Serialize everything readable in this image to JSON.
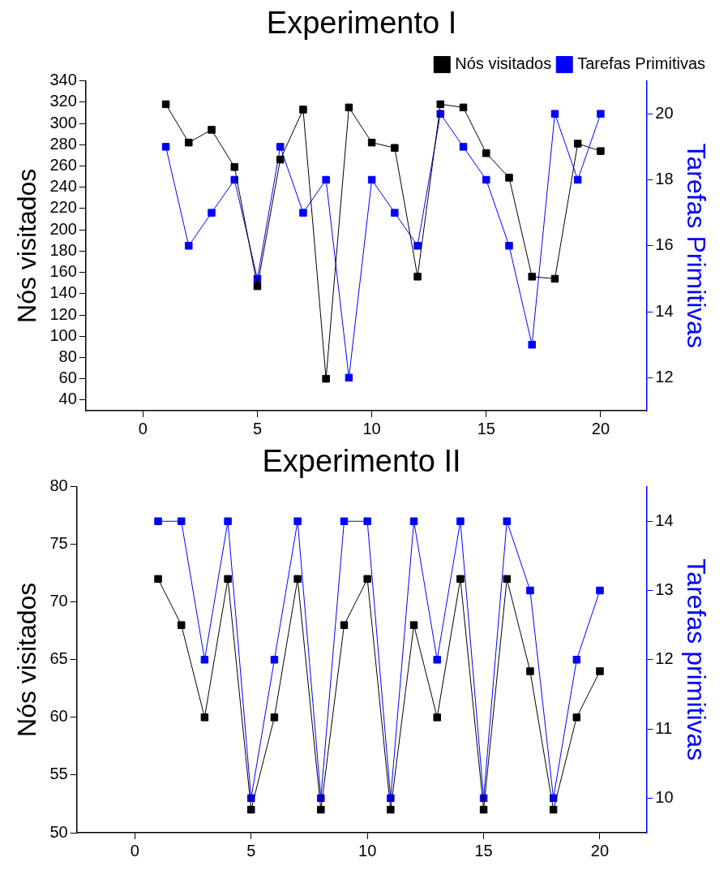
{
  "chart_data": [
    {
      "type": "line",
      "title": "Experimento I",
      "ylabel": "Nós visitados",
      "y2label": "Tarefas Primitivas",
      "legend": "top right",
      "marker": "square",
      "x": [
        1,
        2,
        3,
        4,
        5,
        6,
        7,
        8,
        9,
        10,
        11,
        12,
        13,
        14,
        15,
        16,
        17,
        18,
        19,
        20
      ],
      "xlim": [
        -2.5,
        22
      ],
      "xticks": [
        0,
        5,
        10,
        15,
        20
      ],
      "ylim": [
        30,
        340
      ],
      "yticks": [
        40,
        60,
        80,
        100,
        120,
        140,
        160,
        180,
        200,
        220,
        240,
        260,
        280,
        300,
        320,
        340
      ],
      "y2lim": [
        11,
        21
      ],
      "y2ticks": [
        12,
        14,
        16,
        18,
        20
      ],
      "series": [
        {
          "name": "Nós visitados",
          "color": "#000000",
          "values": [
            318,
            282,
            294,
            259,
            147,
            266,
            313,
            60,
            315,
            282,
            277,
            156,
            318,
            315,
            272,
            249,
            156,
            154,
            281,
            274
          ]
        },
        {
          "name": "Tarefas Primitivas",
          "color": "#0000ff",
          "axis": "y2",
          "values": [
            19,
            16,
            17,
            18,
            15,
            19,
            17,
            18,
            12,
            18,
            17,
            16,
            20,
            19,
            18,
            16,
            13,
            20,
            18,
            20
          ]
        }
      ]
    },
    {
      "type": "line",
      "title": "Experimento II",
      "ylabel": "Nós visitados",
      "y2label": "Tarefas primitivas",
      "marker": "square",
      "x": [
        1,
        2,
        3,
        4,
        5,
        6,
        7,
        8,
        9,
        10,
        11,
        12,
        13,
        14,
        15,
        16,
        17,
        18,
        19,
        20
      ],
      "xlim": [
        -2.5,
        22
      ],
      "xticks": [
        0,
        5,
        10,
        15,
        20
      ],
      "ylim": [
        50,
        80
      ],
      "yticks": [
        50,
        55,
        60,
        65,
        70,
        75,
        80
      ],
      "y2lim": [
        9.5,
        14.5
      ],
      "y2ticks": [
        10,
        11,
        12,
        13,
        14
      ],
      "series": [
        {
          "color": "#000000",
          "values": [
            72,
            68,
            60,
            72,
            52,
            60,
            72,
            52,
            68,
            72,
            52,
            68,
            60,
            72,
            52,
            72,
            64,
            52,
            60,
            64
          ]
        },
        {
          "color": "#0000ff",
          "axis": "y2",
          "values": [
            14,
            14,
            12,
            14,
            10,
            12,
            14,
            10,
            14,
            14,
            10,
            14,
            12,
            14,
            10,
            14,
            13,
            10,
            12,
            13
          ]
        }
      ]
    }
  ]
}
